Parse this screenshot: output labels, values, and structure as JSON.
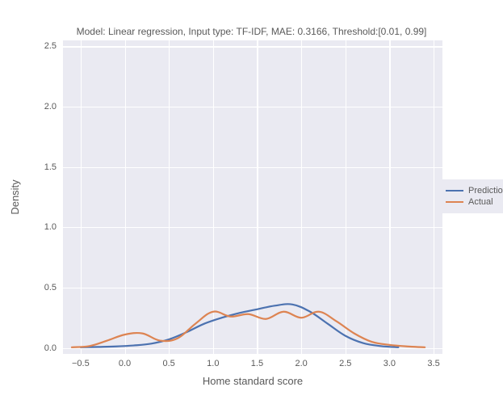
{
  "chart": {
    "type": "line",
    "title": "Model: Linear regression, Input type: TF-IDF, MAE: 0.3166, Threshold:[0.01, 0.99]",
    "title_fontsize": 12,
    "title_color": "#595959",
    "xlabel": "Home standard score",
    "ylabel": "Density",
    "label_fontsize": 13,
    "label_color": "#595959",
    "xlim": [
      -0.7,
      3.6
    ],
    "ylim": [
      -0.05,
      2.55
    ],
    "xticks": [
      -0.5,
      0.0,
      0.5,
      1.0,
      1.5,
      2.0,
      2.5,
      3.0,
      3.5
    ],
    "xtick_labels": [
      "−0.5",
      "0.0",
      "0.5",
      "1.0",
      "1.5",
      "2.0",
      "2.5",
      "3.0",
      "3.5"
    ],
    "yticks": [
      0.0,
      0.5,
      1.0,
      1.5,
      2.0,
      2.5
    ],
    "ytick_labels": [
      "0.0",
      "0.5",
      "1.0",
      "1.5",
      "2.0",
      "2.5"
    ],
    "tick_fontsize": 11,
    "tick_color": "#595959",
    "background_color": "#eaeaf2",
    "figure_background": "#ffffff",
    "grid_color": "#ffffff",
    "grid_linewidth": 1.2,
    "line_width": 2.2,
    "series": [
      {
        "name": "Prediction",
        "color": "#4c72b0",
        "x": [
          -0.5,
          -0.3,
          -0.1,
          0.1,
          0.3,
          0.5,
          0.7,
          0.9,
          1.1,
          1.3,
          1.5,
          1.7,
          1.9,
          2.1,
          2.3,
          2.5,
          2.7,
          2.9,
          3.1
        ],
        "y": [
          0.005,
          0.008,
          0.012,
          0.02,
          0.035,
          0.07,
          0.13,
          0.2,
          0.25,
          0.29,
          0.32,
          0.35,
          0.36,
          0.3,
          0.2,
          0.1,
          0.04,
          0.015,
          0.005
        ]
      },
      {
        "name": "Actual",
        "color": "#dd8452",
        "x": [
          -0.6,
          -0.4,
          -0.2,
          0.0,
          0.2,
          0.4,
          0.6,
          0.8,
          1.0,
          1.2,
          1.4,
          1.6,
          1.8,
          2.0,
          2.2,
          2.4,
          2.6,
          2.8,
          3.0,
          3.2,
          3.4
        ],
        "y": [
          0.005,
          0.015,
          0.06,
          0.11,
          0.12,
          0.06,
          0.08,
          0.2,
          0.3,
          0.26,
          0.28,
          0.24,
          0.3,
          0.25,
          0.3,
          0.22,
          0.12,
          0.05,
          0.025,
          0.012,
          0.005
        ]
      }
    ],
    "legend": {
      "position": "right",
      "items": [
        "Prediction",
        "Actual"
      ],
      "fontsize": 11,
      "background": "#eaeaf2"
    }
  }
}
